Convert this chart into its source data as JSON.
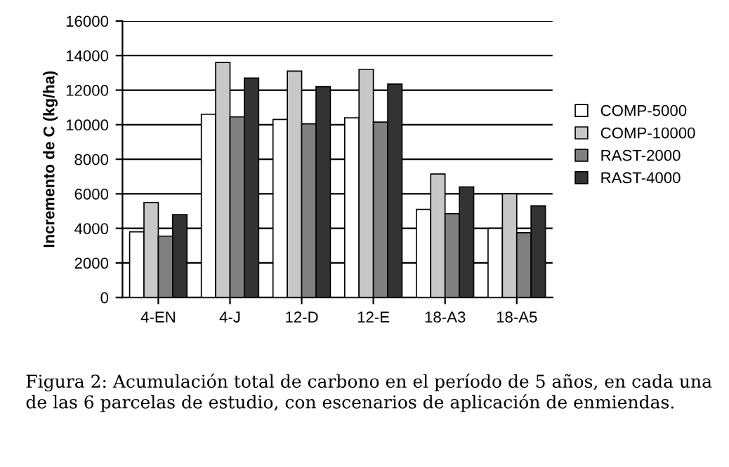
{
  "chart_data": {
    "type": "bar",
    "ylabel": "Incremento de C (kg/ha)",
    "categories": [
      "4-EN",
      "4-J",
      "12-D",
      "12-E",
      "18-A3",
      "18-A5"
    ],
    "series": [
      {
        "name": "COMP-5000",
        "color": "#ffffff",
        "values": [
          3800,
          10600,
          10300,
          10400,
          5100,
          4000
        ]
      },
      {
        "name": "COMP-10000",
        "color": "#c8c8c8",
        "values": [
          5500,
          13600,
          13100,
          13200,
          7150,
          6000
        ]
      },
      {
        "name": "RAST-2000",
        "color": "#808080",
        "values": [
          3550,
          10450,
          10050,
          10150,
          4850,
          3750
        ]
      },
      {
        "name": "RAST-4000",
        "color": "#333333",
        "values": [
          4800,
          12700,
          12200,
          12350,
          6400,
          5300
        ]
      }
    ],
    "ylim": [
      0,
      16000
    ],
    "yticks": [
      0,
      2000,
      4000,
      6000,
      8000,
      10000,
      12000,
      14000,
      16000
    ],
    "grid": "y",
    "legend": "right",
    "annotations": [
      "Figura 2: Acumulación total de carbono en el período de 5 años, en cada una de las 6 parcelas de estudio, con escenarios de aplicación de enmiendas."
    ]
  }
}
